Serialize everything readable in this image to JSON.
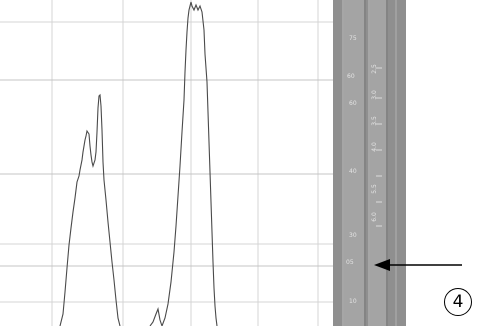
{
  "chart_data": {
    "type": "line",
    "title": "",
    "xlabel": "",
    "ylabel": "",
    "grid": true,
    "series": [
      {
        "values": [
          [
            60,
            326
          ],
          [
            63,
            314
          ],
          [
            65,
            292
          ],
          [
            67,
            268
          ],
          [
            69,
            245
          ],
          [
            71,
            228
          ],
          [
            73,
            212
          ],
          [
            75,
            198
          ],
          [
            76,
            190
          ],
          [
            77,
            182
          ],
          [
            79,
            176
          ],
          [
            80,
            170
          ],
          [
            82,
            160
          ],
          [
            83,
            152
          ],
          [
            85,
            140
          ],
          [
            86,
            136
          ],
          [
            87,
            131
          ],
          [
            89,
            134
          ],
          [
            90,
            146
          ],
          [
            91,
            155
          ],
          [
            92,
            162
          ],
          [
            93,
            166
          ],
          [
            95,
            160
          ],
          [
            96,
            152
          ],
          [
            97,
            132
          ],
          [
            98,
            108
          ],
          [
            99,
            96
          ],
          [
            100,
            95
          ],
          [
            101,
            106
          ],
          [
            102,
            130
          ],
          [
            103,
            162
          ],
          [
            104,
            180
          ],
          [
            106,
            200
          ],
          [
            108,
            222
          ],
          [
            110,
            242
          ],
          [
            112,
            262
          ],
          [
            114,
            280
          ],
          [
            116,
            300
          ],
          [
            118,
            318
          ],
          [
            120,
            326
          ]
        ]
      },
      {
        "values": [
          [
            150,
            326
          ],
          [
            153,
            322
          ],
          [
            156,
            314
          ],
          [
            158,
            309
          ],
          [
            160,
            320
          ],
          [
            162,
            326
          ],
          [
            165,
            318
          ],
          [
            168,
            304
          ],
          [
            171,
            282
          ],
          [
            174,
            252
          ],
          [
            176,
            226
          ],
          [
            178,
            196
          ],
          [
            180,
            166
          ],
          [
            182,
            132
          ],
          [
            184,
            100
          ],
          [
            185,
            72
          ],
          [
            186,
            50
          ],
          [
            187,
            32
          ],
          [
            188,
            18
          ],
          [
            189,
            10
          ],
          [
            190,
            6
          ],
          [
            191,
            2
          ],
          [
            192,
            6
          ],
          [
            194,
            10
          ],
          [
            196,
            5
          ],
          [
            198,
            10
          ],
          [
            200,
            6
          ],
          [
            202,
            12
          ],
          [
            204,
            30
          ],
          [
            205,
            54
          ],
          [
            207,
            82
          ],
          [
            208,
            112
          ],
          [
            209,
            142
          ],
          [
            210,
            172
          ],
          [
            211,
            202
          ],
          [
            212,
            232
          ],
          [
            213,
            262
          ],
          [
            214,
            288
          ],
          [
            215,
            306
          ],
          [
            216,
            318
          ],
          [
            217,
            326
          ]
        ]
      }
    ],
    "right_scale": {
      "labels": [
        "75",
        "60",
        "40",
        "30",
        "20",
        "10",
        "05"
      ],
      "sub_labels": [
        "2.5",
        "3.0",
        "3.5",
        "4.0",
        "5.5",
        "6.0"
      ]
    },
    "arrow_label_target": "05"
  },
  "callout": {
    "number": "4"
  },
  "colors": {
    "ruler_dark": "#8c8c8c",
    "ruler_mid": "#9e9e9e",
    "ruler_text": "#e6e6e6",
    "grid": "#cfcfcf",
    "trace": "#4a4a4a",
    "arrow": "#000000"
  }
}
